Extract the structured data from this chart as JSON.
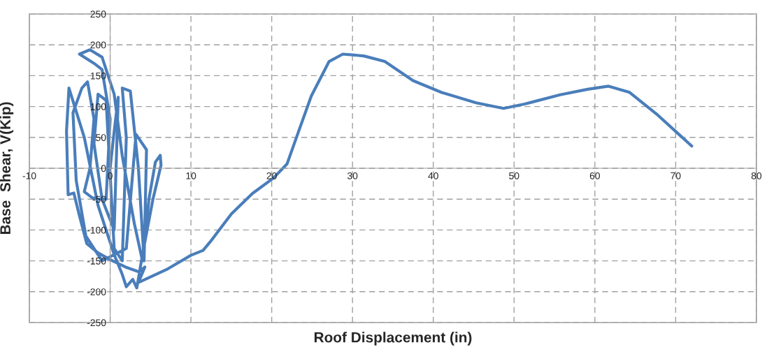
{
  "chart_data": {
    "type": "line",
    "xlabel": "Roof Displacement (in)",
    "ylabel": "Base  Shear, V(Kip)",
    "xlim": [
      -10,
      80
    ],
    "ylim": [
      -250,
      250
    ],
    "xticks": [
      -10,
      0,
      10,
      20,
      30,
      40,
      50,
      60,
      70,
      80
    ],
    "yticks": [
      -250,
      -200,
      -150,
      -100,
      -50,
      0,
      50,
      100,
      150,
      200,
      250
    ],
    "grid": true,
    "series": [
      {
        "color": "#4a7ebb",
        "x": [
          0,
          0.5,
          1,
          0.5,
          -1,
          -2,
          -1.5,
          -0.5,
          0.5,
          1.5,
          2,
          1.5,
          2.5,
          3.5,
          4.2,
          4.5,
          3.2,
          2,
          -1,
          -3,
          -4.2,
          -4.6,
          -3.5,
          -2.8,
          -2,
          -2.5,
          -3.2,
          -2.2,
          -0.5,
          0,
          -1,
          -2,
          -3.8,
          -2.5,
          -1,
          0.5,
          1.5,
          3,
          4,
          4.8,
          5.6,
          6.2,
          6.3,
          5.3,
          4,
          3.3,
          2.8,
          2,
          1.5,
          0.5,
          -1.5,
          -3.2,
          -5.1,
          -5.4,
          -5.2,
          -4.5,
          -3.8,
          -2.9,
          -1.5,
          0,
          1.9,
          3.6,
          4.3,
          3.5,
          7,
          10,
          11.5,
          12.4,
          15,
          17.6,
          20.2,
          21.9,
          23.2,
          24.9,
          27.1,
          28.8,
          31.4,
          34,
          37.5,
          41,
          45.3,
          48.7,
          51.3,
          55.7,
          59.1,
          61.7,
          64.3,
          67.8,
          70.4,
          72
        ],
        "values": [
          0,
          60,
          115,
          -100,
          -50,
          40,
          120,
          110,
          -130,
          -150,
          50,
          130,
          125,
          0,
          -150,
          30,
          55,
          -130,
          -150,
          -110,
          -20,
          90,
          130,
          140,
          80,
          0,
          -38,
          -48,
          -50,
          80,
          160,
          170,
          185,
          192,
          180,
          120,
          20,
          -90,
          -150,
          -50,
          10,
          21,
          5,
          -50,
          -140,
          -194,
          -180,
          -192,
          -172,
          -140,
          -60,
          50,
          130,
          60,
          -43,
          -40,
          -77,
          -122,
          -137,
          -148,
          -160,
          -168,
          -160,
          -185,
          -164,
          -141,
          -133,
          -119,
          -74,
          -41,
          -16,
          7,
          55,
          117,
          173,
          185,
          182,
          173,
          142,
          123,
          106,
          97,
          104,
          119,
          128,
          133,
          123,
          86,
          55,
          36
        ]
      }
    ]
  }
}
